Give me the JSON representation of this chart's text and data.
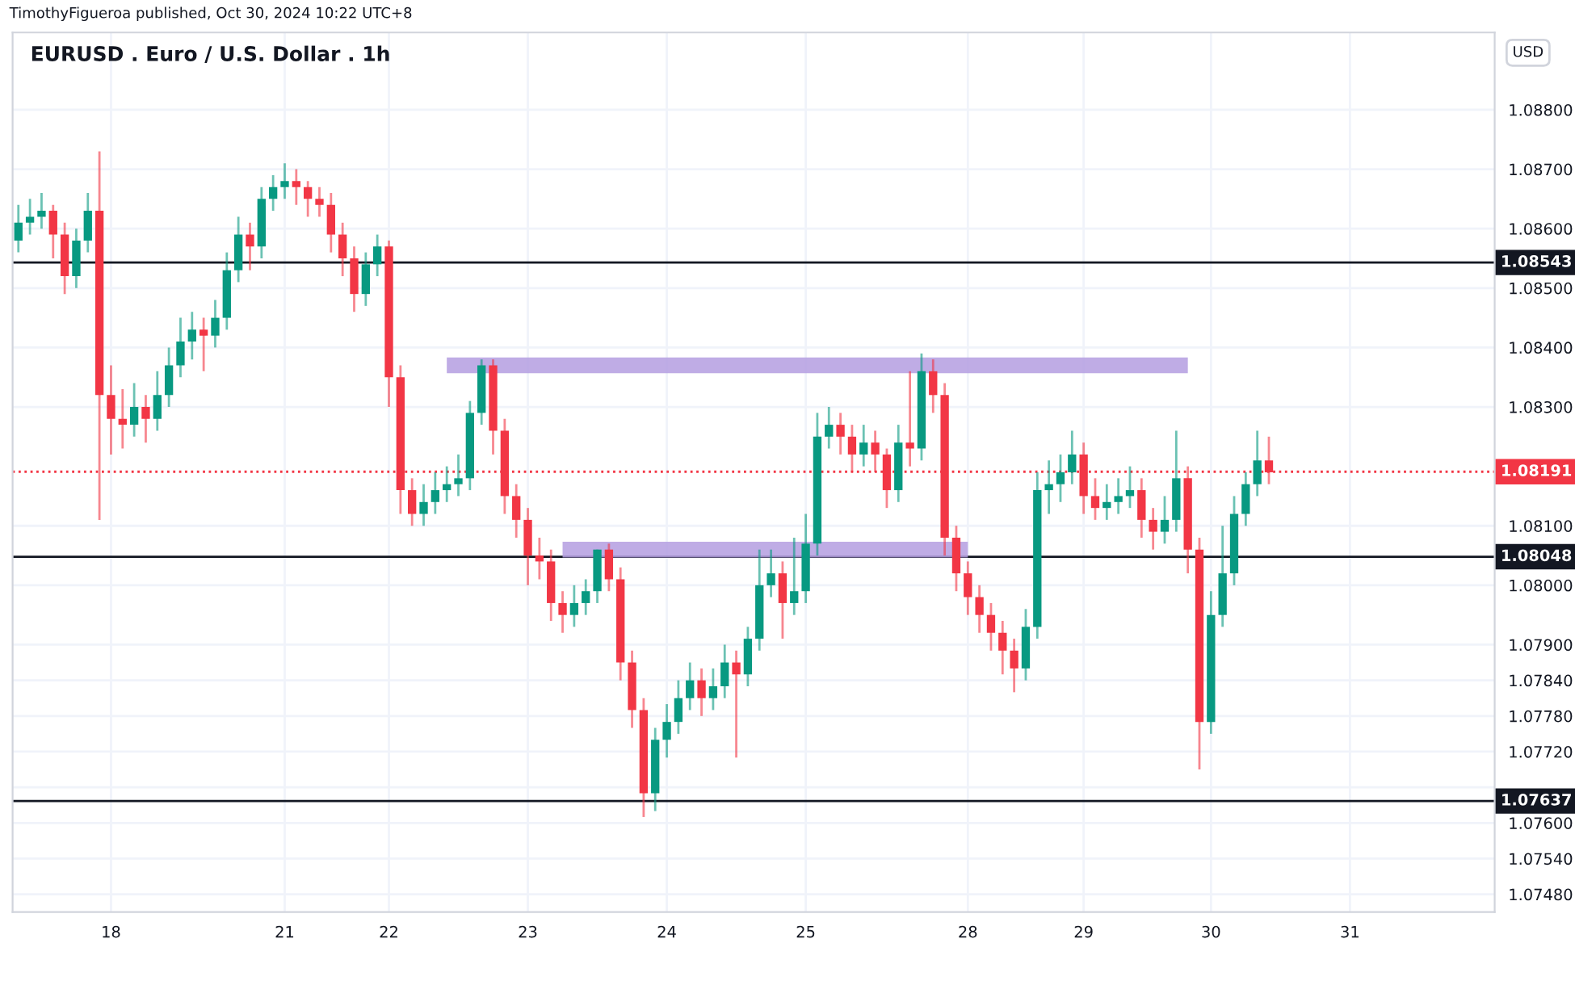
{
  "chart_data": {
    "type": "candlestick",
    "title": "EURUSD . Euro / U.S. Dollar . 1h",
    "annotations": [
      "TimothyFigueroa published, Oct 30, 2024 10:22 UTC+8",
      "USD"
    ],
    "categories": [
      null,
      null,
      null,
      null,
      null,
      null,
      null,
      null,
      "18",
      null,
      null,
      null,
      null,
      null,
      null,
      null,
      null,
      null,
      null,
      null,
      null,
      null,
      null,
      "21",
      null,
      null,
      null,
      null,
      null,
      null,
      null,
      null,
      "22",
      null,
      null,
      null,
      null,
      null,
      null,
      null,
      null,
      null,
      null,
      null,
      "23",
      null,
      null,
      null,
      null,
      null,
      null,
      null,
      null,
      null,
      null,
      null,
      "24",
      null,
      null,
      null,
      null,
      null,
      null,
      null,
      null,
      null,
      null,
      null,
      "25",
      null,
      null,
      null,
      null,
      null,
      null,
      null,
      null,
      null,
      null,
      null,
      null,
      null,
      "28",
      null,
      null,
      null,
      null,
      null,
      null,
      null,
      null,
      null,
      "29",
      null,
      null,
      null,
      null,
      null,
      null,
      null,
      null,
      null,
      null,
      "30",
      null,
      null,
      null,
      null,
      null,
      null,
      null,
      null,
      null,
      null,
      null,
      "31",
      null,
      null,
      null,
      null,
      null,
      null,
      null,
      null,
      null,
      null,
      null,
      null
    ],
    "ohlc": [
      [
        1.0858,
        1.0864,
        1.0856,
        1.0861
      ],
      [
        1.0861,
        1.0865,
        1.0859,
        1.0862
      ],
      [
        1.0862,
        1.0866,
        1.086,
        1.0863
      ],
      [
        1.0863,
        1.0864,
        1.0855,
        1.0859
      ],
      [
        1.0859,
        1.0861,
        1.0849,
        1.0852
      ],
      [
        1.0852,
        1.086,
        1.085,
        1.0858
      ],
      [
        1.0858,
        1.0866,
        1.0856,
        1.0863
      ],
      [
        1.0863,
        1.0873,
        1.0811,
        1.0832
      ],
      [
        1.0832,
        1.0837,
        1.0822,
        1.0828
      ],
      [
        1.0828,
        1.0833,
        1.0823,
        1.0827
      ],
      [
        1.0827,
        1.0834,
        1.0825,
        1.083
      ],
      [
        1.083,
        1.0832,
        1.0824,
        1.0828
      ],
      [
        1.0828,
        1.0836,
        1.0826,
        1.0832
      ],
      [
        1.0832,
        1.084,
        1.083,
        1.0837
      ],
      [
        1.0837,
        1.0845,
        1.0835,
        1.0841
      ],
      [
        1.0841,
        1.0846,
        1.0838,
        1.0843
      ],
      [
        1.0843,
        1.0845,
        1.0836,
        1.0842
      ],
      [
        1.0842,
        1.0848,
        1.084,
        1.0845
      ],
      [
        1.0845,
        1.0856,
        1.0843,
        1.0853
      ],
      [
        1.0853,
        1.0862,
        1.0851,
        1.0859
      ],
      [
        1.0859,
        1.0861,
        1.0853,
        1.0857
      ],
      [
        1.0857,
        1.0867,
        1.0855,
        1.0865
      ],
      [
        1.0865,
        1.0869,
        1.0863,
        1.0867
      ],
      [
        1.0867,
        1.0871,
        1.0865,
        1.0868
      ],
      [
        1.0868,
        1.087,
        1.0864,
        1.0867
      ],
      [
        1.0867,
        1.0868,
        1.0862,
        1.0865
      ],
      [
        1.0865,
        1.0867,
        1.0862,
        1.0864
      ],
      [
        1.0864,
        1.0866,
        1.0856,
        1.0859
      ],
      [
        1.0859,
        1.0861,
        1.0852,
        1.0855
      ],
      [
        1.0855,
        1.0857,
        1.0846,
        1.0849
      ],
      [
        1.0849,
        1.0856,
        1.0847,
        1.0854
      ],
      [
        1.0854,
        1.0859,
        1.0852,
        1.0857
      ],
      [
        1.0857,
        1.0858,
        1.083,
        1.0835
      ],
      [
        1.0835,
        1.0837,
        1.0812,
        1.0816
      ],
      [
        1.0816,
        1.0818,
        1.081,
        1.0812
      ],
      [
        1.0812,
        1.0817,
        1.081,
        1.0814
      ],
      [
        1.0814,
        1.0819,
        1.0812,
        1.0816
      ],
      [
        1.0816,
        1.082,
        1.0814,
        1.0817
      ],
      [
        1.0817,
        1.0822,
        1.0815,
        1.0818
      ],
      [
        1.0818,
        1.0831,
        1.0816,
        1.0829
      ],
      [
        1.0829,
        1.0838,
        1.0827,
        1.0837
      ],
      [
        1.0837,
        1.0838,
        1.0822,
        1.0826
      ],
      [
        1.0826,
        1.0828,
        1.0812,
        1.0815
      ],
      [
        1.0815,
        1.0817,
        1.0808,
        1.0811
      ],
      [
        1.0811,
        1.0813,
        1.08,
        1.0805
      ],
      [
        1.0805,
        1.0808,
        1.0801,
        1.0804
      ],
      [
        1.0804,
        1.0806,
        1.0794,
        1.0797
      ],
      [
        1.0797,
        1.0799,
        1.0792,
        1.0795
      ],
      [
        1.0795,
        1.08,
        1.0793,
        1.0797
      ],
      [
        1.0797,
        1.0801,
        1.0795,
        1.0799
      ],
      [
        1.0799,
        1.0806,
        1.0797,
        1.0806
      ],
      [
        1.0806,
        1.0807,
        1.0799,
        1.0801
      ],
      [
        1.0801,
        1.0803,
        1.0784,
        1.0787
      ],
      [
        1.0787,
        1.0789,
        1.0776,
        1.0779
      ],
      [
        1.0779,
        1.0781,
        1.0761,
        1.0765
      ],
      [
        1.0765,
        1.0776,
        1.0762,
        1.0774
      ],
      [
        1.0774,
        1.078,
        1.0771,
        1.0777
      ],
      [
        1.0777,
        1.0784,
        1.0775,
        1.0781
      ],
      [
        1.0781,
        1.0787,
        1.0779,
        1.0784
      ],
      [
        1.0784,
        1.0786,
        1.0778,
        1.0781
      ],
      [
        1.0781,
        1.0786,
        1.0779,
        1.0783
      ],
      [
        1.0783,
        1.079,
        1.0781,
        1.0787
      ],
      [
        1.0787,
        1.0789,
        1.0771,
        1.0785
      ],
      [
        1.0785,
        1.0793,
        1.0783,
        1.0791
      ],
      [
        1.0791,
        1.0806,
        1.0789,
        1.08
      ],
      [
        1.08,
        1.0806,
        1.0798,
        1.0802
      ],
      [
        1.0802,
        1.0804,
        1.0791,
        1.0797
      ],
      [
        1.0797,
        1.0808,
        1.0795,
        1.0799
      ],
      [
        1.0799,
        1.0812,
        1.0797,
        1.0807
      ],
      [
        1.0807,
        1.0829,
        1.0805,
        1.0825
      ],
      [
        1.0825,
        1.083,
        1.0823,
        1.0827
      ],
      [
        1.0827,
        1.0829,
        1.0822,
        1.0825
      ],
      [
        1.0825,
        1.0827,
        1.0819,
        1.0822
      ],
      [
        1.0822,
        1.0827,
        1.082,
        1.0824
      ],
      [
        1.0824,
        1.0826,
        1.0819,
        1.0822
      ],
      [
        1.0822,
        1.0823,
        1.0813,
        1.0816
      ],
      [
        1.0816,
        1.0827,
        1.0814,
        1.0824
      ],
      [
        1.0824,
        1.0836,
        1.082,
        1.0823
      ],
      [
        1.0823,
        1.0839,
        1.0821,
        1.0836
      ],
      [
        1.0836,
        1.0838,
        1.0829,
        1.0832
      ],
      [
        1.0832,
        1.0834,
        1.0805,
        1.0808
      ],
      [
        1.0808,
        1.081,
        1.0799,
        1.0802
      ],
      [
        1.0802,
        1.0804,
        1.0795,
        1.0798
      ],
      [
        1.0798,
        1.08,
        1.0792,
        1.0795
      ],
      [
        1.0795,
        1.0797,
        1.0789,
        1.0792
      ],
      [
        1.0792,
        1.0794,
        1.0785,
        1.0789
      ],
      [
        1.0789,
        1.0791,
        1.0782,
        1.0786
      ],
      [
        1.0786,
        1.0796,
        1.0784,
        1.0793
      ],
      [
        1.0793,
        1.0819,
        1.0791,
        1.0816
      ],
      [
        1.0816,
        1.0821,
        1.0812,
        1.0817
      ],
      [
        1.0817,
        1.0822,
        1.0814,
        1.0819
      ],
      [
        1.0819,
        1.0826,
        1.0817,
        1.0822
      ],
      [
        1.0822,
        1.0824,
        1.0812,
        1.0815
      ],
      [
        1.0815,
        1.0818,
        1.0811,
        1.0813
      ],
      [
        1.0813,
        1.0817,
        1.0811,
        1.0814
      ],
      [
        1.0814,
        1.0818,
        1.0812,
        1.0815
      ],
      [
        1.0815,
        1.082,
        1.0813,
        1.0816
      ],
      [
        1.0816,
        1.0818,
        1.0808,
        1.0811
      ],
      [
        1.0811,
        1.0813,
        1.0806,
        1.0809
      ],
      [
        1.0809,
        1.0815,
        1.0807,
        1.0811
      ],
      [
        1.0811,
        1.0826,
        1.0809,
        1.0818
      ],
      [
        1.0818,
        1.082,
        1.0802,
        1.0806
      ],
      [
        1.0806,
        1.0808,
        1.0769,
        1.0777
      ],
      [
        1.0777,
        1.0799,
        1.0775,
        1.0795
      ],
      [
        1.0795,
        1.081,
        1.0793,
        1.0802
      ],
      [
        1.0802,
        1.0815,
        1.08,
        1.0812
      ],
      [
        1.0812,
        1.0819,
        1.081,
        1.0817
      ],
      [
        1.0817,
        1.0826,
        1.0815,
        1.0821
      ],
      [
        1.0821,
        1.0825,
        1.0817,
        1.0819
      ],
      null,
      null,
      null,
      null,
      null,
      null,
      null,
      null,
      null,
      null,
      null,
      null,
      null,
      null,
      null,
      null,
      null,
      null,
      null
    ],
    "colors": [
      "#089981",
      "#089981",
      "#089981",
      "#f23645",
      "#f23645",
      "#089981",
      "#089981",
      "#f23645",
      "#f23645",
      "#f23645",
      "#089981",
      "#f23645",
      "#089981",
      "#089981",
      "#089981",
      "#089981",
      "#f23645",
      "#089981",
      "#089981",
      "#089981",
      "#f23645",
      "#089981",
      "#089981",
      "#089981",
      "#f23645",
      "#f23645",
      "#f23645",
      "#f23645",
      "#f23645",
      "#f23645",
      "#089981",
      "#089981",
      "#f23645",
      "#f23645",
      "#f23645",
      "#089981",
      "#089981",
      "#089981",
      "#089981",
      "#089981",
      "#089981",
      "#f23645",
      "#f23645",
      "#f23645",
      "#f23645",
      "#f23645",
      "#f23645",
      "#f23645",
      "#089981",
      "#089981",
      "#089981",
      "#f23645",
      "#f23645",
      "#f23645",
      "#f23645",
      "#089981",
      "#089981",
      "#089981",
      "#089981",
      "#f23645",
      "#089981",
      "#089981",
      "#f23645",
      "#089981",
      "#089981",
      "#089981",
      "#f23645",
      "#089981",
      "#089981",
      "#089981",
      "#089981",
      "#f23645",
      "#f23645",
      "#089981",
      "#f23645",
      "#f23645",
      "#089981",
      "#f23645",
      "#089981",
      "#f23645",
      "#f23645",
      "#f23645",
      "#f23645",
      "#f23645",
      "#f23645",
      "#f23645",
      "#f23645",
      "#089981",
      "#089981",
      "#089981",
      "#089981",
      "#089981",
      "#f23645",
      "#f23645",
      "#089981",
      "#089981",
      "#089981",
      "#f23645",
      "#f23645",
      "#089981",
      "#089981",
      "#f23645",
      "#f23645",
      "#089981",
      "#089981",
      "#089981",
      "#089981",
      "#089981",
      "#f23645",
      null,
      null,
      null,
      null,
      null,
      null,
      null,
      null,
      null,
      null,
      null,
      null,
      null,
      null,
      null,
      null,
      null,
      null,
      null
    ],
    "series": [
      {
        "type": "line",
        "color": "#b49ee0",
        "values": [
          null,
          null,
          null,
          null,
          null,
          null,
          null,
          null,
          null,
          null,
          null,
          null,
          null,
          null,
          null,
          null,
          null,
          null,
          null,
          null,
          null,
          null,
          null,
          null,
          null,
          null,
          null,
          null,
          null,
          null,
          null,
          null,
          null,
          null,
          null,
          null,
          null,
          1.0837,
          1.0837,
          1.0837,
          1.0837,
          1.0837,
          1.0837,
          1.0837,
          1.0837,
          1.0837,
          1.0837,
          1.0837,
          1.0837,
          1.0837,
          1.0837,
          1.0837,
          1.0837,
          1.0837,
          1.0837,
          1.0837,
          1.0837,
          1.0837,
          1.0837,
          1.0837,
          1.0837,
          1.0837,
          1.0837,
          1.0837,
          1.0837,
          1.0837,
          1.0837,
          1.0837,
          1.0837,
          1.0837,
          1.0837,
          1.0837,
          1.0837,
          1.0837,
          1.0837,
          1.0837,
          1.0837,
          1.0837,
          1.0837,
          1.0837,
          1.0837,
          1.0837,
          1.0837,
          1.0837,
          1.0837,
          1.0837,
          1.0837,
          1.0837,
          1.0837,
          1.0837,
          1.0837,
          1.0837,
          1.0837,
          1.0837,
          1.0837,
          1.0837,
          1.0837,
          1.0837,
          1.0837,
          1.0837,
          1.0837,
          1.0837,
          null,
          null,
          null,
          null,
          null,
          null,
          null,
          null,
          null,
          null,
          null,
          null,
          null,
          null,
          null,
          null,
          null,
          null,
          null,
          null,
          null,
          null,
          null,
          null,
          null,
          null
        ]
      },
      {
        "type": "line",
        "color": "#b49ee0",
        "values": [
          null,
          null,
          null,
          null,
          null,
          null,
          null,
          null,
          null,
          null,
          null,
          null,
          null,
          null,
          null,
          null,
          null,
          null,
          null,
          null,
          null,
          null,
          null,
          null,
          null,
          null,
          null,
          null,
          null,
          null,
          null,
          null,
          null,
          null,
          null,
          null,
          null,
          null,
          null,
          null,
          null,
          null,
          null,
          null,
          null,
          null,
          null,
          1.0806,
          1.0806,
          1.0806,
          1.0806,
          1.0806,
          1.0806,
          1.0806,
          1.0806,
          1.0806,
          1.0806,
          1.0806,
          1.0806,
          1.0806,
          1.0806,
          1.0806,
          1.0806,
          1.0806,
          1.0806,
          1.0806,
          1.0806,
          1.0806,
          1.0806,
          1.0806,
          1.0806,
          1.0806,
          1.0806,
          1.0806,
          1.0806,
          1.0806,
          1.0806,
          1.0806,
          1.0806,
          1.0806,
          1.0806,
          1.0806,
          1.0806,
          null,
          null,
          null,
          null,
          null,
          null,
          null,
          null,
          null,
          null,
          null,
          null,
          null,
          null,
          null,
          null,
          null,
          null,
          null,
          null,
          null,
          null,
          null,
          null,
          null,
          null,
          null,
          null,
          null,
          null,
          null,
          null,
          null,
          null,
          null,
          null,
          null,
          null,
          null,
          null,
          null,
          null,
          null,
          null,
          null
        ]
      }
    ],
    "ylim": [
      1.0745,
      1.0893
    ],
    "yticks": [
      {
        "value": 1.088,
        "label": "1.08800"
      },
      {
        "value": 1.087,
        "label": "1.08700"
      },
      {
        "value": 1.086,
        "label": "1.08600"
      },
      {
        "value": 1.085,
        "label": "1.08500"
      },
      {
        "value": 1.084,
        "label": "1.08400"
      },
      {
        "value": 1.083,
        "label": "1.08300"
      },
      {
        "value": 1.081,
        "label": "1.08100"
      },
      {
        "value": 1.08,
        "label": "1.08000"
      },
      {
        "value": 1.079,
        "label": "1.07900"
      },
      {
        "value": 1.0784,
        "label": "1.07840"
      },
      {
        "value": 1.0778,
        "label": "1.07780"
      },
      {
        "value": 1.0772,
        "label": "1.07720"
      },
      {
        "value": 1.0766,
        "label": null
      },
      {
        "value": 1.076,
        "label": "1.07600"
      },
      {
        "value": 1.0754,
        "label": "1.07540"
      },
      {
        "value": 1.0748,
        "label": "1.07480"
      }
    ],
    "ref_lines": [
      {
        "axis": "y",
        "value": 1.08543,
        "label": "1.08543",
        "color": "#131722",
        "line_style": "solid"
      },
      {
        "axis": "y",
        "value": 1.08048,
        "label": "1.08048",
        "color": "#131722",
        "line_style": "solid"
      },
      {
        "axis": "y",
        "value": 1.07637,
        "label": "1.07637",
        "color": "#131722",
        "line_style": "solid"
      },
      {
        "axis": "y",
        "value": 1.08191,
        "label": "1.08191",
        "color": "#f23645",
        "line_style": "dotted"
      }
    ],
    "grid": true,
    "legend": false
  }
}
